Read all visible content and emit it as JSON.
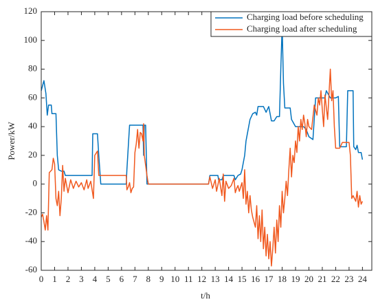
{
  "chart_data": {
    "type": "line",
    "x_label": "t/h",
    "y_label": "Power/kW",
    "xlim": [
      0,
      24.7
    ],
    "ylim": [
      -60,
      120
    ],
    "xticks": [
      0,
      1,
      2,
      3,
      4,
      5,
      6,
      7,
      8,
      9,
      10,
      11,
      12,
      13,
      14,
      15,
      16,
      17,
      18,
      19,
      20,
      21,
      22,
      23,
      24
    ],
    "yticks": [
      -60,
      -40,
      -20,
      0,
      20,
      40,
      60,
      80,
      100,
      120
    ],
    "legend": "upper right",
    "series": [
      {
        "name": "Charging load before scheduling",
        "color": "#0072bd",
        "x": [
          0,
          0.2,
          0.35,
          0.45,
          0.55,
          0.75,
          0.8,
          1.1,
          1.2,
          1.3,
          1.5,
          1.7,
          1.8,
          3.8,
          3.85,
          4.2,
          4.3,
          4.45,
          6.35,
          6.4,
          6.6,
          7.6,
          7.65,
          7.7,
          7.8,
          7.9,
          12.5,
          12.6,
          13.2,
          13.25,
          13.5,
          13.6,
          14.4,
          14.5,
          14.7,
          14.9,
          15.0,
          15.2,
          15.3,
          15.4,
          15.6,
          15.8,
          16.0,
          16.1,
          16.2,
          16.6,
          16.8,
          17.0,
          17.2,
          17.4,
          17.6,
          17.8,
          17.9,
          18.0,
          18.1,
          18.2,
          18.6,
          18.7,
          19.0,
          19.4,
          19.6,
          19.8,
          20.0,
          20.3,
          20.5,
          20.8,
          21.0,
          21.2,
          21.3,
          21.6,
          22.0,
          22.2,
          22.3,
          22.8,
          22.9,
          23.3,
          23.35,
          23.5,
          23.6,
          23.7,
          23.9,
          24.0
        ],
        "values": [
          65,
          72,
          63,
          48,
          55,
          55,
          49,
          49,
          20,
          10,
          9,
          9,
          6,
          6,
          35,
          35,
          20,
          0,
          0,
          10,
          41,
          41,
          20,
          41,
          41,
          0,
          0,
          6,
          6,
          3,
          3,
          6,
          6,
          3,
          6,
          7,
          10,
          20,
          30,
          35,
          45,
          49,
          50,
          48,
          54,
          54,
          50,
          54,
          44,
          44,
          47,
          47,
          80,
          110,
          70,
          53,
          53,
          45,
          40,
          40,
          40,
          38,
          33,
          31,
          60,
          60,
          60,
          60,
          65,
          60,
          60,
          61,
          26,
          26,
          65,
          65,
          26,
          24,
          27,
          22,
          22,
          17
        ]
      },
      {
        "name": "Charging load after scheduling",
        "color": "#f0581e",
        "x": [
          0,
          0.1,
          0.2,
          0.3,
          0.4,
          0.5,
          0.6,
          0.8,
          0.9,
          1.0,
          1.1,
          1.2,
          1.3,
          1.4,
          1.5,
          1.6,
          1.7,
          1.8,
          2.0,
          2.2,
          2.4,
          2.6,
          2.8,
          3.0,
          3.2,
          3.4,
          3.5,
          3.7,
          3.9,
          4.0,
          4.2,
          4.3,
          6.35,
          6.4,
          6.5,
          6.6,
          6.7,
          6.8,
          6.9,
          7.0,
          7.1,
          7.2,
          7.3,
          7.4,
          7.5,
          7.6,
          7.65,
          7.7,
          7.9,
          8.0,
          12.5,
          12.6,
          12.8,
          13.0,
          13.1,
          13.3,
          13.5,
          13.6,
          13.7,
          13.8,
          14.0,
          14.2,
          14.4,
          14.5,
          14.6,
          14.7,
          14.8,
          15.0,
          15.1,
          15.2,
          15.3,
          15.4,
          15.5,
          15.6,
          15.7,
          15.8,
          16.0,
          16.1,
          16.2,
          16.3,
          16.4,
          16.5,
          16.6,
          16.7,
          16.8,
          16.9,
          17.0,
          17.1,
          17.2,
          17.3,
          17.4,
          17.5,
          17.6,
          17.7,
          17.8,
          17.9,
          18.0,
          18.1,
          18.2,
          18.3,
          18.4,
          18.5,
          18.6,
          18.7,
          18.8,
          18.9,
          19.0,
          19.1,
          19.2,
          19.3,
          19.4,
          19.5,
          19.6,
          19.7,
          19.8,
          19.9,
          20.0,
          20.2,
          20.4,
          20.6,
          20.7,
          20.8,
          20.9,
          21.0,
          21.1,
          21.2,
          21.4,
          21.6,
          21.7,
          21.8,
          21.9,
          22.0,
          22.3,
          22.5,
          23.0,
          23.1,
          23.2,
          23.3,
          23.5,
          23.6,
          23.7,
          23.8,
          23.9,
          24.0
        ],
        "values": [
          -23,
          -21,
          -26,
          -32,
          -22,
          -32,
          8,
          10,
          18,
          14,
          -10,
          -15,
          -5,
          -22,
          -10,
          13,
          -5,
          4,
          -6,
          3,
          -3,
          2,
          -2,
          1,
          -4,
          3,
          -3,
          2,
          -10,
          20,
          23,
          6,
          6,
          -4,
          -2,
          1,
          -6,
          -3,
          -2,
          22,
          28,
          38,
          25,
          36,
          35,
          30,
          42,
          20,
          6,
          0,
          0,
          5,
          -3,
          3,
          -5,
          4,
          -8,
          7,
          -12,
          2,
          -3,
          -1,
          4,
          -6,
          -3,
          -1,
          -5,
          1,
          -10,
          10,
          -14,
          -5,
          -20,
          -8,
          -18,
          -23,
          -30,
          -15,
          -38,
          -22,
          -40,
          -18,
          -45,
          -30,
          -50,
          -35,
          -52,
          -40,
          -57,
          -45,
          -30,
          -48,
          -25,
          -40,
          -15,
          -30,
          -5,
          -20,
          -10,
          2,
          -8,
          10,
          25,
          5,
          20,
          15,
          30,
          22,
          40,
          30,
          45,
          38,
          48,
          42,
          33,
          45,
          40,
          38,
          55,
          48,
          60,
          55,
          65,
          52,
          40,
          62,
          45,
          80,
          58,
          65,
          40,
          25,
          25,
          29,
          29,
          20,
          -10,
          -8,
          -12,
          -5,
          -16,
          -8,
          -14,
          -12
        ]
      }
    ]
  }
}
